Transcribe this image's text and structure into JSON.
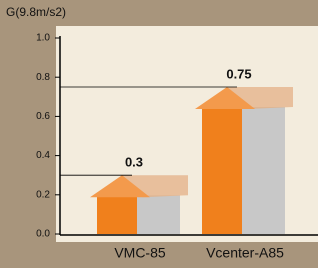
{
  "chart_data": {
    "type": "house-bar",
    "y_label": "G(9.8m/s2)",
    "categories": [
      "VMC-85",
      "Vcenter-A85"
    ],
    "values": [
      0.3,
      0.75
    ],
    "color": "#f0801c",
    "side_color": "#c8c8c8",
    "ylim": [
      0,
      1
    ],
    "yticks": [
      {
        "value": 0,
        "label": "0.0"
      },
      0.2,
      0.4,
      0.6,
      0.8,
      {
        "value": 1,
        "label": "1.0"
      }
    ],
    "reference_lines": true
  }
}
